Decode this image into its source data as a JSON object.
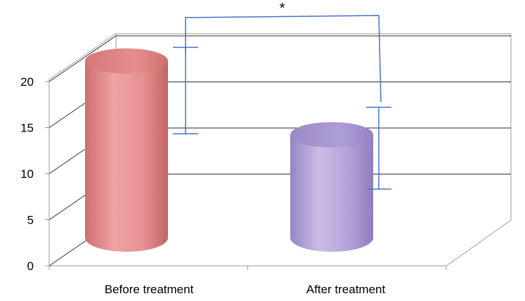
{
  "chart_data": {
    "type": "bar",
    "style": "3d-cylinder",
    "categories": [
      "Before treatment",
      "After treatment"
    ],
    "values": [
      19.5,
      11.5
    ],
    "error_bars": [
      [
        13.8,
        22.8
      ],
      [
        7.8,
        16.3
      ]
    ],
    "colors": [
      "#e48a8a",
      "#ab9ad0"
    ],
    "ylim": [
      0,
      20
    ],
    "yticks": [
      "0",
      "5",
      "10",
      "15",
      "20"
    ],
    "grid": true,
    "significance": {
      "label": "*",
      "between": [
        "Before treatment",
        "After treatment"
      ]
    },
    "title": "",
    "xlabel": "",
    "ylabel": ""
  }
}
